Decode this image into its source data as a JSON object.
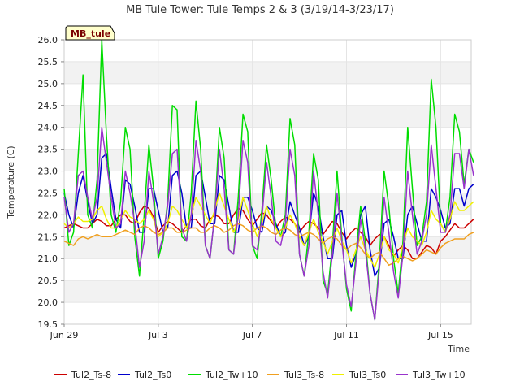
{
  "chart_data": {
    "type": "line",
    "title": "MB Tule Tower: Tule Temps 2 & 3 (3/19/14-3/23/17)",
    "xlabel": "Time",
    "ylabel": "Temperature (C)",
    "badge": "MB_tule",
    "xlim": [
      0,
      17.3
    ],
    "ylim": [
      19.5,
      26.0
    ],
    "yticks": [
      "19.5",
      "20.0",
      "20.5",
      "21.0",
      "21.5",
      "22.0",
      "22.5",
      "23.0",
      "23.5",
      "24.0",
      "24.5",
      "25.0",
      "25.5",
      "26.0"
    ],
    "xticks": [
      {
        "value": 0,
        "label": "Jun 29"
      },
      {
        "value": 4,
        "label": "Jul 3"
      },
      {
        "value": 8,
        "label": "Jul 7"
      },
      {
        "value": 12,
        "label": "Jul 11"
      },
      {
        "value": 16,
        "label": "Jul 15"
      }
    ],
    "x_units": "days since Jun 29",
    "series": [
      {
        "name": "Tul2_Ts-8",
        "color": "#cc0000",
        "day_values": [
          [
            21.7,
            21.75,
            21.8,
            21.75,
            21.7
          ],
          [
            21.7,
            21.8,
            21.9,
            21.85,
            21.75
          ],
          [
            21.75,
            21.9,
            22.0,
            22.0,
            21.85
          ],
          [
            21.8,
            22.05,
            22.2,
            22.15,
            21.95
          ],
          [
            21.6,
            21.75,
            21.85,
            21.8,
            21.7
          ],
          [
            21.6,
            21.75,
            21.9,
            21.9,
            21.75
          ],
          [
            21.7,
            21.9,
            22.0,
            21.95,
            21.8
          ],
          [
            21.8,
            22.0,
            22.15,
            22.1,
            21.9
          ],
          [
            21.75,
            21.9,
            22.05,
            22.0,
            21.85
          ],
          [
            21.7,
            21.85,
            21.95,
            21.9,
            21.8
          ],
          [
            21.6,
            21.75,
            21.85,
            21.8,
            21.7
          ],
          [
            21.55,
            21.7,
            21.85,
            21.8,
            21.6
          ],
          [
            21.45,
            21.6,
            21.7,
            21.6,
            21.5
          ],
          [
            21.3,
            21.45,
            21.55,
            21.5,
            21.3
          ],
          [
            21.05,
            21.2,
            21.3,
            21.2,
            21.0
          ],
          [
            21.0,
            21.15,
            21.3,
            21.25,
            21.1
          ],
          [
            21.4,
            21.5,
            21.65,
            21.8,
            21.7
          ],
          [
            21.7,
            21.8,
            21.9
          ]
        ]
      },
      {
        "name": "Tul2_Ts0",
        "color": "#0000cc",
        "day_values": [
          [
            22.5,
            22.0,
            21.7,
            22.5,
            22.9
          ],
          [
            22.3,
            21.8,
            22.0,
            23.3,
            23.4
          ],
          [
            22.6,
            21.9,
            21.7,
            22.8,
            22.7
          ],
          [
            22.2,
            21.6,
            21.6,
            22.6,
            22.6
          ],
          [
            22.1,
            21.6,
            21.7,
            22.9,
            23.0
          ],
          [
            22.5,
            21.7,
            21.7,
            22.9,
            23.0
          ],
          [
            22.4,
            21.8,
            21.8,
            22.9,
            22.8
          ],
          [
            22.2,
            21.6,
            21.6,
            22.4,
            22.4
          ],
          [
            22.1,
            21.7,
            21.6,
            22.2,
            22.1
          ],
          [
            21.8,
            21.5,
            21.6,
            22.3,
            22.0
          ],
          [
            21.7,
            21.3,
            21.5,
            22.5,
            22.2
          ],
          [
            21.5,
            21.0,
            21.0,
            22.0,
            22.1
          ],
          [
            21.3,
            20.8,
            21.1,
            22.0,
            22.2
          ],
          [
            21.2,
            20.6,
            20.8,
            21.8,
            21.9
          ],
          [
            21.5,
            21.0,
            21.0,
            22.0,
            22.2
          ],
          [
            21.8,
            21.4,
            21.4,
            22.6,
            22.4
          ],
          [
            22.1,
            21.7,
            21.8,
            22.6,
            22.6
          ],
          [
            22.2,
            22.6,
            22.7
          ]
        ]
      },
      {
        "name": "Tul2_Tw+10",
        "color": "#00dd00",
        "day_values": [
          [
            22.6,
            21.3,
            21.6,
            23.4,
            25.2
          ],
          [
            22.0,
            21.7,
            22.8,
            26.0,
            23.8
          ],
          [
            22.0,
            21.6,
            22.3,
            24.0,
            23.5
          ],
          [
            21.5,
            20.6,
            22.0,
            23.6,
            22.6
          ],
          [
            21.0,
            21.4,
            22.3,
            24.5,
            24.4
          ],
          [
            21.5,
            21.4,
            22.5,
            24.6,
            23.5
          ],
          [
            21.3,
            21.0,
            22.0,
            24.0,
            23.3
          ],
          [
            21.2,
            21.1,
            22.4,
            24.3,
            23.9
          ],
          [
            21.3,
            21.0,
            22.1,
            23.6,
            22.8
          ],
          [
            21.7,
            21.5,
            22.0,
            24.2,
            23.6
          ],
          [
            21.1,
            20.6,
            21.6,
            23.4,
            22.8
          ],
          [
            20.5,
            20.2,
            21.3,
            23.0,
            21.5
          ],
          [
            20.3,
            19.8,
            21.1,
            22.2,
            21.4
          ],
          [
            20.2,
            19.6,
            21.0,
            23.0,
            22.2
          ],
          [
            21.0,
            20.2,
            21.4,
            24.0,
            22.6
          ],
          [
            21.3,
            21.5,
            22.3,
            25.1,
            24.0
          ],
          [
            21.8,
            21.6,
            22.4,
            24.3,
            23.9
          ],
          [
            22.7,
            23.5,
            23.2
          ]
        ]
      },
      {
        "name": "Tul3_Ts-8",
        "color": "#f0a020",
        "day_values": [
          [
            21.4,
            21.35,
            21.3,
            21.45,
            21.5
          ],
          [
            21.45,
            21.5,
            21.55,
            21.5,
            21.5
          ],
          [
            21.5,
            21.55,
            21.6,
            21.65,
            21.6
          ],
          [
            21.55,
            21.7,
            21.75,
            21.7,
            21.6
          ],
          [
            21.55,
            21.6,
            21.7,
            21.7,
            21.6
          ],
          [
            21.6,
            21.65,
            21.7,
            21.7,
            21.6
          ],
          [
            21.6,
            21.7,
            21.75,
            21.7,
            21.6
          ],
          [
            21.65,
            21.75,
            21.8,
            21.75,
            21.65
          ],
          [
            21.6,
            21.7,
            21.75,
            21.7,
            21.6
          ],
          [
            21.55,
            21.65,
            21.7,
            21.65,
            21.55
          ],
          [
            21.5,
            21.55,
            21.6,
            21.55,
            21.45
          ],
          [
            21.35,
            21.45,
            21.5,
            21.45,
            21.3
          ],
          [
            21.2,
            21.3,
            21.35,
            21.25,
            21.1
          ],
          [
            21.0,
            21.1,
            21.15,
            21.0,
            20.85
          ],
          [
            20.9,
            21.0,
            21.05,
            21.0,
            20.95
          ],
          [
            21.0,
            21.1,
            21.2,
            21.15,
            21.1
          ],
          [
            21.25,
            21.35,
            21.4,
            21.45,
            21.45
          ],
          [
            21.45,
            21.55,
            21.6
          ]
        ]
      },
      {
        "name": "Tul3_Ts0",
        "color": "#f0f000",
        "day_values": [
          [
            21.8,
            21.7,
            21.8,
            21.95,
            21.85
          ],
          [
            21.85,
            21.9,
            22.1,
            22.2,
            21.9
          ],
          [
            21.7,
            21.7,
            21.9,
            22.1,
            21.95
          ],
          [
            21.9,
            21.8,
            21.9,
            22.1,
            21.9
          ],
          [
            21.5,
            21.6,
            21.8,
            22.2,
            22.1
          ],
          [
            21.9,
            21.7,
            22.0,
            22.4,
            22.2
          ],
          [
            22.0,
            21.8,
            22.1,
            22.5,
            22.2
          ],
          [
            21.9,
            21.6,
            21.9,
            22.4,
            22.1
          ],
          [
            21.8,
            21.5,
            21.8,
            22.2,
            21.9
          ],
          [
            21.7,
            21.5,
            21.7,
            22.0,
            21.8
          ],
          [
            21.5,
            21.3,
            21.6,
            21.9,
            21.6
          ],
          [
            21.4,
            21.1,
            21.4,
            21.7,
            21.4
          ],
          [
            21.2,
            20.9,
            21.2,
            21.5,
            21.2
          ],
          [
            21.0,
            20.8,
            21.1,
            21.5,
            21.2
          ],
          [
            21.1,
            20.9,
            21.3,
            21.7,
            21.5
          ],
          [
            21.4,
            21.3,
            21.6,
            22.1,
            21.9
          ],
          [
            21.8,
            21.6,
            21.9,
            22.3,
            22.1
          ],
          [
            22.1,
            22.2,
            22.3
          ]
        ]
      },
      {
        "name": "Tul3_Tw+10",
        "color": "#9933cc",
        "day_values": [
          [
            22.4,
            21.6,
            21.8,
            22.9,
            23.0
          ],
          [
            22.4,
            21.9,
            22.4,
            24.0,
            23.2
          ],
          [
            22.4,
            21.7,
            21.8,
            23.0,
            22.5
          ],
          [
            21.8,
            20.8,
            21.4,
            23.0,
            22.3
          ],
          [
            21.1,
            21.5,
            22.2,
            23.4,
            23.5
          ],
          [
            21.7,
            21.4,
            22.0,
            23.7,
            23.0
          ],
          [
            21.3,
            21.0,
            22.0,
            23.5,
            22.6
          ],
          [
            21.2,
            21.1,
            22.0,
            23.7,
            23.2
          ],
          [
            21.3,
            21.2,
            21.9,
            23.2,
            22.4
          ],
          [
            21.4,
            21.3,
            21.8,
            23.5,
            22.9
          ],
          [
            21.1,
            20.6,
            21.3,
            23.0,
            22.0
          ],
          [
            20.7,
            20.1,
            21.1,
            22.5,
            21.4
          ],
          [
            20.4,
            19.9,
            20.9,
            21.9,
            21.2
          ],
          [
            20.2,
            19.6,
            20.8,
            22.4,
            21.6
          ],
          [
            20.7,
            20.1,
            21.1,
            23.0,
            22.0
          ],
          [
            21.1,
            21.4,
            22.0,
            23.6,
            22.6
          ],
          [
            21.6,
            21.6,
            22.0,
            23.4,
            23.4
          ],
          [
            22.6,
            23.5,
            22.9
          ]
        ]
      }
    ]
  }
}
